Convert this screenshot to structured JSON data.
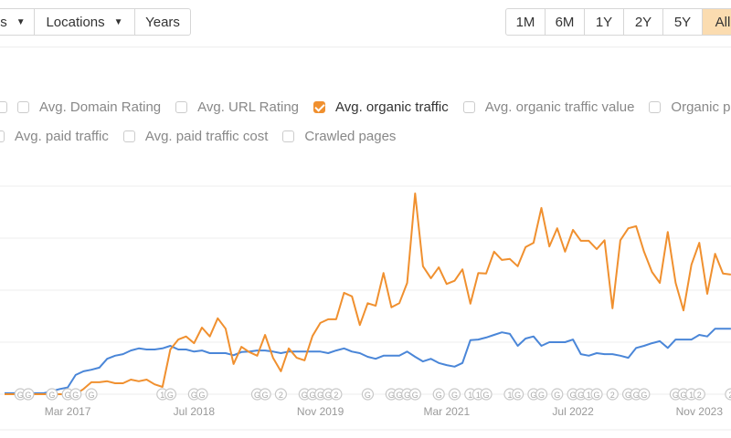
{
  "toolbar": {
    "filters": [
      {
        "label": "s",
        "dropdown": true
      },
      {
        "label": "Locations",
        "dropdown": true
      },
      {
        "label": "Years",
        "dropdown": false
      }
    ],
    "ranges": [
      {
        "label": "1M",
        "active": false
      },
      {
        "label": "6M",
        "active": false
      },
      {
        "label": "1Y",
        "active": false
      },
      {
        "label": "2Y",
        "active": false
      },
      {
        "label": "5Y",
        "active": false
      },
      {
        "label": "All",
        "active": true
      }
    ]
  },
  "metrics": {
    "row1": [
      {
        "label": "",
        "checked": false
      },
      {
        "label": "Avg. Domain Rating",
        "checked": false
      },
      {
        "label": "Avg. URL Rating",
        "checked": false
      },
      {
        "label": "Avg. organic traffic",
        "checked": true
      },
      {
        "label": "Avg. organic traffic value",
        "checked": false
      },
      {
        "label": "Organic pag",
        "checked": false
      }
    ],
    "row2": [
      {
        "label": "Avg. paid traffic",
        "checked": false
      },
      {
        "label": "Avg. paid traffic cost",
        "checked": false
      },
      {
        "label": "Crawled pages",
        "checked": false
      }
    ]
  },
  "chart_data": {
    "type": "line",
    "start_month": "2016-07",
    "interval": "month",
    "ylim": [
      0,
      4
    ],
    "grid": true,
    "x_tick_labels": [
      {
        "label": "Mar 2017",
        "month": "2017-03"
      },
      {
        "label": "Jul 2018",
        "month": "2018-07"
      },
      {
        "label": "Nov 2019",
        "month": "2019-11"
      },
      {
        "label": "Mar 2021",
        "month": "2021-03"
      },
      {
        "label": "Jul 2022",
        "month": "2022-07"
      },
      {
        "label": "Nov 2023",
        "month": "2023-11"
      }
    ],
    "series": [
      {
        "color": "#f0902f",
        "values": [
          0,
          0,
          0,
          0,
          0,
          0,
          0,
          0,
          0,
          0,
          0.1,
          0.23,
          0.23,
          0.25,
          0.21,
          0.21,
          0.28,
          0.25,
          0.28,
          0.19,
          0.14,
          0.86,
          1.05,
          1.11,
          0.98,
          1.28,
          1.11,
          1.46,
          1.26,
          0.58,
          0.91,
          0.81,
          0.74,
          1.14,
          0.7,
          0.44,
          0.88,
          0.7,
          0.65,
          1.12,
          1.37,
          1.44,
          1.44,
          1.95,
          1.88,
          1.33,
          1.75,
          1.7,
          2.33,
          1.67,
          1.75,
          2.14,
          3.86,
          2.46,
          2.23,
          2.44,
          2.12,
          2.18,
          2.4,
          1.74,
          2.33,
          2.32,
          2.74,
          2.58,
          2.6,
          2.46,
          2.83,
          2.91,
          3.58,
          2.84,
          3.19,
          2.74,
          3.16,
          2.95,
          2.95,
          2.79,
          2.96,
          1.65,
          2.96,
          3.19,
          3.23,
          2.74,
          2.35,
          2.14,
          3.12,
          2.14,
          1.61,
          2.49,
          2.91,
          1.93,
          2.7,
          2.32,
          2.3
        ]
      },
      {
        "color": "#4a86d8",
        "values": [
          0.02,
          0.02,
          0.02,
          0.02,
          0.02,
          0.02,
          0.06,
          0.1,
          0.13,
          0.37,
          0.44,
          0.47,
          0.51,
          0.68,
          0.74,
          0.77,
          0.84,
          0.88,
          0.86,
          0.86,
          0.88,
          0.93,
          0.86,
          0.86,
          0.82,
          0.84,
          0.79,
          0.79,
          0.79,
          0.75,
          0.81,
          0.82,
          0.84,
          0.84,
          0.82,
          0.79,
          0.82,
          0.82,
          0.82,
          0.82,
          0.82,
          0.79,
          0.84,
          0.88,
          0.82,
          0.79,
          0.72,
          0.68,
          0.74,
          0.74,
          0.74,
          0.82,
          0.72,
          0.63,
          0.68,
          0.6,
          0.56,
          0.53,
          0.6,
          1.04,
          1.05,
          1.09,
          1.14,
          1.19,
          1.16,
          0.93,
          1.07,
          1.11,
          0.93,
          1.0,
          1.0,
          1.0,
          1.05,
          0.77,
          0.74,
          0.79,
          0.77,
          0.77,
          0.74,
          0.7,
          0.89,
          0.93,
          0.98,
          1.02,
          0.89,
          1.05,
          1.05,
          1.05,
          1.14,
          1.11,
          1.26,
          1.26,
          1.26
        ]
      }
    ],
    "annotations": [
      {
        "month": "2016-09",
        "glyph": "G"
      },
      {
        "month": "2016-10",
        "glyph": "G"
      },
      {
        "month": "2017-01",
        "glyph": "G"
      },
      {
        "month": "2017-03",
        "glyph": "G"
      },
      {
        "month": "2017-04",
        "glyph": "G"
      },
      {
        "month": "2017-06",
        "glyph": "G"
      },
      {
        "month": "2018-03",
        "glyph": "1"
      },
      {
        "month": "2018-04",
        "glyph": "G"
      },
      {
        "month": "2018-07",
        "glyph": "G"
      },
      {
        "month": "2018-08",
        "glyph": "G"
      },
      {
        "month": "2019-03",
        "glyph": "G"
      },
      {
        "month": "2019-04",
        "glyph": "G"
      },
      {
        "month": "2019-06",
        "glyph": "2"
      },
      {
        "month": "2019-09",
        "glyph": "G"
      },
      {
        "month": "2019-10",
        "glyph": "G"
      },
      {
        "month": "2019-11",
        "glyph": "G"
      },
      {
        "month": "2019-12",
        "glyph": "G"
      },
      {
        "month": "2020-01",
        "glyph": "2"
      },
      {
        "month": "2020-05",
        "glyph": "G"
      },
      {
        "month": "2020-08",
        "glyph": "G"
      },
      {
        "month": "2020-09",
        "glyph": "G"
      },
      {
        "month": "2020-10",
        "glyph": "G"
      },
      {
        "month": "2020-11",
        "glyph": "G"
      },
      {
        "month": "2021-02",
        "glyph": "G"
      },
      {
        "month": "2021-04",
        "glyph": "G"
      },
      {
        "month": "2021-06",
        "glyph": "1"
      },
      {
        "month": "2021-07",
        "glyph": "1"
      },
      {
        "month": "2021-08",
        "glyph": "G"
      },
      {
        "month": "2021-11",
        "glyph": "1"
      },
      {
        "month": "2021-12",
        "glyph": "G"
      },
      {
        "month": "2022-02",
        "glyph": "G"
      },
      {
        "month": "2022-03",
        "glyph": "G"
      },
      {
        "month": "2022-05",
        "glyph": "G"
      },
      {
        "month": "2022-07",
        "glyph": "G"
      },
      {
        "month": "2022-08",
        "glyph": "G"
      },
      {
        "month": "2022-09",
        "glyph": "1"
      },
      {
        "month": "2022-10",
        "glyph": "G"
      },
      {
        "month": "2022-12",
        "glyph": "2"
      },
      {
        "month": "2023-02",
        "glyph": "G"
      },
      {
        "month": "2023-03",
        "glyph": "G"
      },
      {
        "month": "2023-04",
        "glyph": "G"
      },
      {
        "month": "2023-08",
        "glyph": "G"
      },
      {
        "month": "2023-09",
        "glyph": "G"
      },
      {
        "month": "2023-10",
        "glyph": "1"
      },
      {
        "month": "2023-11",
        "glyph": "2"
      },
      {
        "month": "2024-03",
        "glyph": "2"
      }
    ]
  }
}
